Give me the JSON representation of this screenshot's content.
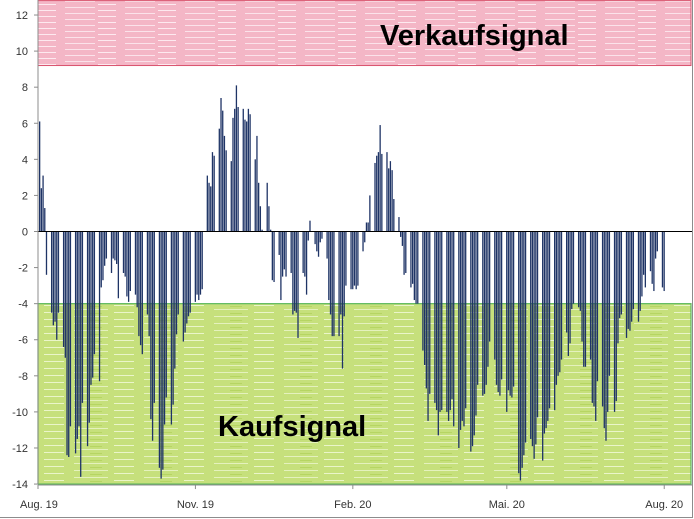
{
  "chart_data": {
    "type": "bar",
    "title": "",
    "xlabel": "",
    "ylabel": "",
    "ylim": [
      -14,
      12
    ],
    "yticks": [
      "12",
      "10",
      "8",
      "6",
      "4",
      "2",
      "0",
      "-2",
      "-4",
      "-6",
      "-8",
      "-10",
      "-12",
      "-14"
    ],
    "xticks": [
      "Aug. 19",
      "Nov. 19",
      "Feb. 20",
      "Mai. 20",
      "Aug. 20"
    ],
    "grid": false,
    "bar_color": "#1f3466",
    "zones": [
      {
        "label": "Verkaufsignal",
        "from": 9.2,
        "to": 12.8,
        "color": "#f4b6c6",
        "border": "#d9536e"
      },
      {
        "label": "Kaufsignal",
        "from": -14,
        "to": -4,
        "color": "#c6e07c",
        "border": "#5cb85c"
      }
    ],
    "weekly_values": [
      [
        6.1,
        2.4,
        3.1,
        1.3,
        -2.4
      ],
      [
        -4.5,
        -5.2,
        -5,
        -6,
        -4.5
      ],
      [
        -6.4,
        -7,
        -12.4,
        -12.5,
        -10.8
      ],
      [
        -12.3,
        -11.5,
        -10.8,
        -13.6,
        -9.5
      ],
      [
        -11.9,
        -10.6,
        -8.5,
        -8.1,
        -6.8
      ],
      [
        -8.3,
        -3.1,
        -2.7,
        -1.9,
        -1.5
      ],
      [
        -2.3,
        -1.5,
        -1.6,
        -1.8,
        -3.7
      ],
      [
        -2.3,
        -2.5,
        -3.6,
        -3.9,
        -3.3
      ],
      [
        -3.5,
        -4.2,
        -5.8,
        -6.3,
        -6.8
      ],
      [
        -4.6,
        -5.8,
        -10.4,
        -11.6,
        -9.5
      ],
      [
        -13.1,
        -13.7,
        -13.2,
        -10.7,
        -9.2
      ],
      [
        -10.7,
        -9.6,
        -7.6,
        -5.7,
        -4.6
      ],
      [
        -6.1,
        -5.6,
        -5.1,
        -4.7,
        -4.5
      ],
      [
        -3.9,
        -3.5,
        -3.8,
        -3.5,
        -3.2
      ],
      [
        3.1,
        2.7,
        2.5,
        4.4,
        4.2
      ],
      [
        5.7,
        7.4,
        6.7,
        5.3,
        4.5
      ],
      [
        3.9,
        6.3,
        6.8,
        8.1,
        6.9
      ],
      [
        6.8,
        6.2,
        6.1,
        6.8,
        6.5
      ],
      [
        4.0,
        5.3,
        2.7,
        1.4,
        0.1
      ],
      [
        2.7,
        1.4,
        0.1,
        -2.7,
        -2.8
      ],
      [
        -1.3,
        -3.8,
        -2.5,
        -2.1,
        -2.5
      ],
      [
        -2.3,
        -4.6,
        -4.4,
        -4.5,
        -5.9
      ],
      [
        -2.3,
        -2.5,
        -3.5,
        -0.5,
        0.6
      ],
      [
        -0.7,
        -1.1,
        -1.4,
        -0.6,
        -0.4
      ],
      [
        -1.5,
        -3.8,
        -4.6,
        -5.8,
        -5.8
      ],
      [
        -5.8,
        -4.6,
        -7.6,
        -4.7,
        -3.0
      ],
      [
        -3.2,
        -3.2,
        -3.0,
        -3.2,
        -3.0
      ],
      [
        -1.1,
        -0.6,
        0.5,
        0.5,
        2.0
      ],
      [
        3.8,
        4.2,
        4.4,
        5.9,
        4.3
      ],
      [
        4.4,
        3.5,
        3.9,
        3.4,
        1.8
      ],
      [
        0.8,
        -0.3,
        -0.8,
        -2.4,
        -2.3
      ],
      [
        -3.1,
        -2.9,
        -3.8,
        -4.0,
        -4.0
      ],
      [
        -6.6,
        -7.4,
        -8.7,
        -10.5,
        -9
      ],
      [
        -9.5,
        -9.9,
        -11.3,
        -10,
        -9.9
      ],
      [
        -10,
        -10.5,
        -9.9,
        -9.3,
        -10.8
      ],
      [
        -12,
        -11,
        -10.5,
        -10.8,
        -9.8
      ],
      [
        -12.2,
        -11.9,
        -11.3,
        -10.2,
        -8.5
      ],
      [
        -9.1,
        -9,
        -8.5,
        -7.5,
        -6.1
      ],
      [
        -7.1,
        -8.5,
        -8.9,
        -9.1,
        -8.2
      ],
      [
        -10,
        -8.8,
        -9.1,
        -9.2,
        -8.6
      ],
      [
        -13.4,
        -13.8,
        -13.1,
        -12.4,
        -11.7
      ],
      [
        -11.5,
        -11.9,
        -12.6,
        -11.8,
        -10.3
      ],
      [
        -12.7,
        -11.2,
        -10.9,
        -10.5,
        -9.8
      ],
      [
        -9.9,
        -8.5,
        -8,
        -7.8,
        -7.1
      ],
      [
        -5.6,
        -6.9,
        -6.2,
        -4.3,
        -4
      ],
      [
        -4.2,
        -4.4,
        -6.1,
        -7.5,
        -7.5
      ],
      [
        -7.1,
        -9.5,
        -9.7,
        -10.5,
        -8.3
      ],
      [
        -9.7,
        -10.9,
        -11.6,
        -10,
        -8
      ],
      [
        -10,
        -9.4,
        -6.2,
        -4.8,
        -4.6
      ],
      [
        -5.9,
        -5.4,
        -5.5,
        -5,
        -4.3
      ],
      [
        -5,
        -4.4,
        -3.6,
        -2.4,
        -3.1
      ],
      [
        -2.2,
        -2.9,
        -3.3,
        -1.5,
        -1.1
      ],
      [
        -3.1,
        -3.3
      ]
    ]
  }
}
